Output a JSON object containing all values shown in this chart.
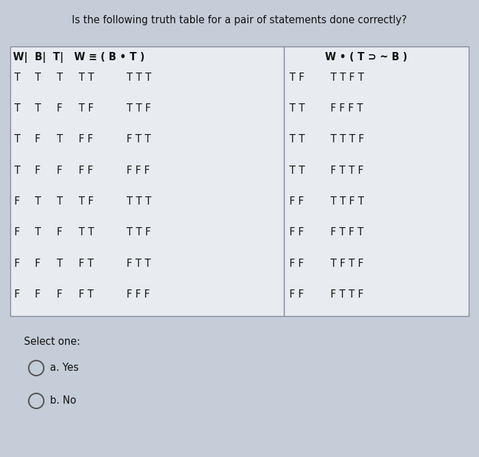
{
  "title": "Is the following truth table for a pair of statements done correctly?",
  "bg_color": "#c5cdd8",
  "table_bg": "#e8ecf0",
  "border_color": "#888899",
  "font_color": "#111111",
  "left_header": "W|  B|  T|   W ≡ ( B • T )",
  "right_header": "W • ( T ⊃ ~ B )",
  "left_data": [
    [
      "T",
      "T",
      "T",
      "T T",
      "T T T"
    ],
    [
      "T",
      "T",
      "F",
      "T F",
      "T T F"
    ],
    [
      "T",
      "F",
      "T",
      "F F",
      "F T T"
    ],
    [
      "T",
      "F",
      "F",
      "F F",
      "F F F"
    ],
    [
      "F",
      "T",
      "T",
      "T F",
      "T T T"
    ],
    [
      "F",
      "T",
      "F",
      "T T",
      "T T F"
    ],
    [
      "F",
      "F",
      "T",
      "F T",
      "F T T"
    ],
    [
      "F",
      "F",
      "F",
      "F T",
      "F F F"
    ]
  ],
  "right_data": [
    [
      "T F",
      "T T F T"
    ],
    [
      "T T",
      "F F F T"
    ],
    [
      "T T",
      "T T T F"
    ],
    [
      "T T",
      "F T T F"
    ],
    [
      "F F",
      "T T F T"
    ],
    [
      "F F",
      "F T F T"
    ],
    [
      "F F",
      "T F T F"
    ],
    [
      "F F",
      "F T T F"
    ]
  ],
  "select_one": "Select one:",
  "option_a": "a. Yes",
  "option_b": "b. No",
  "fig_width": 7.0,
  "fig_height": 6.68,
  "dpi": 100
}
